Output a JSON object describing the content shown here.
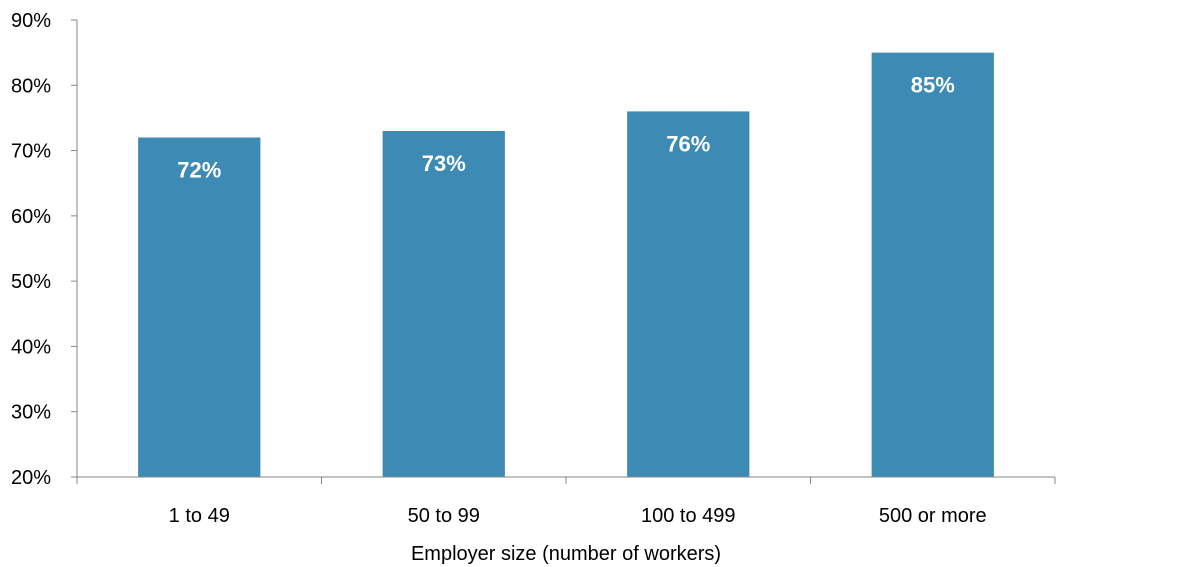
{
  "chart_data": {
    "type": "bar",
    "categories": [
      "1 to 49",
      "50 to 99",
      "100 to 499",
      "500 or more"
    ],
    "values": [
      72,
      73,
      76,
      85
    ],
    "value_labels": [
      "72%",
      "73%",
      "76%",
      "85%"
    ],
    "title": "",
    "xlabel": "Employer size (number of workers)",
    "ylabel": "",
    "ylim": [
      20,
      90
    ],
    "y_ticks": [
      20,
      30,
      40,
      50,
      60,
      70,
      80,
      90
    ],
    "y_tick_labels": [
      "20%",
      "30%",
      "40%",
      "50%",
      "60%",
      "70%",
      "80%",
      "90%"
    ],
    "grid": false,
    "legend": "none",
    "colors": {
      "bar": "#3D8BB4",
      "bar_label": "#FFFFFF",
      "axis": "#868686",
      "text": "#000000"
    }
  }
}
